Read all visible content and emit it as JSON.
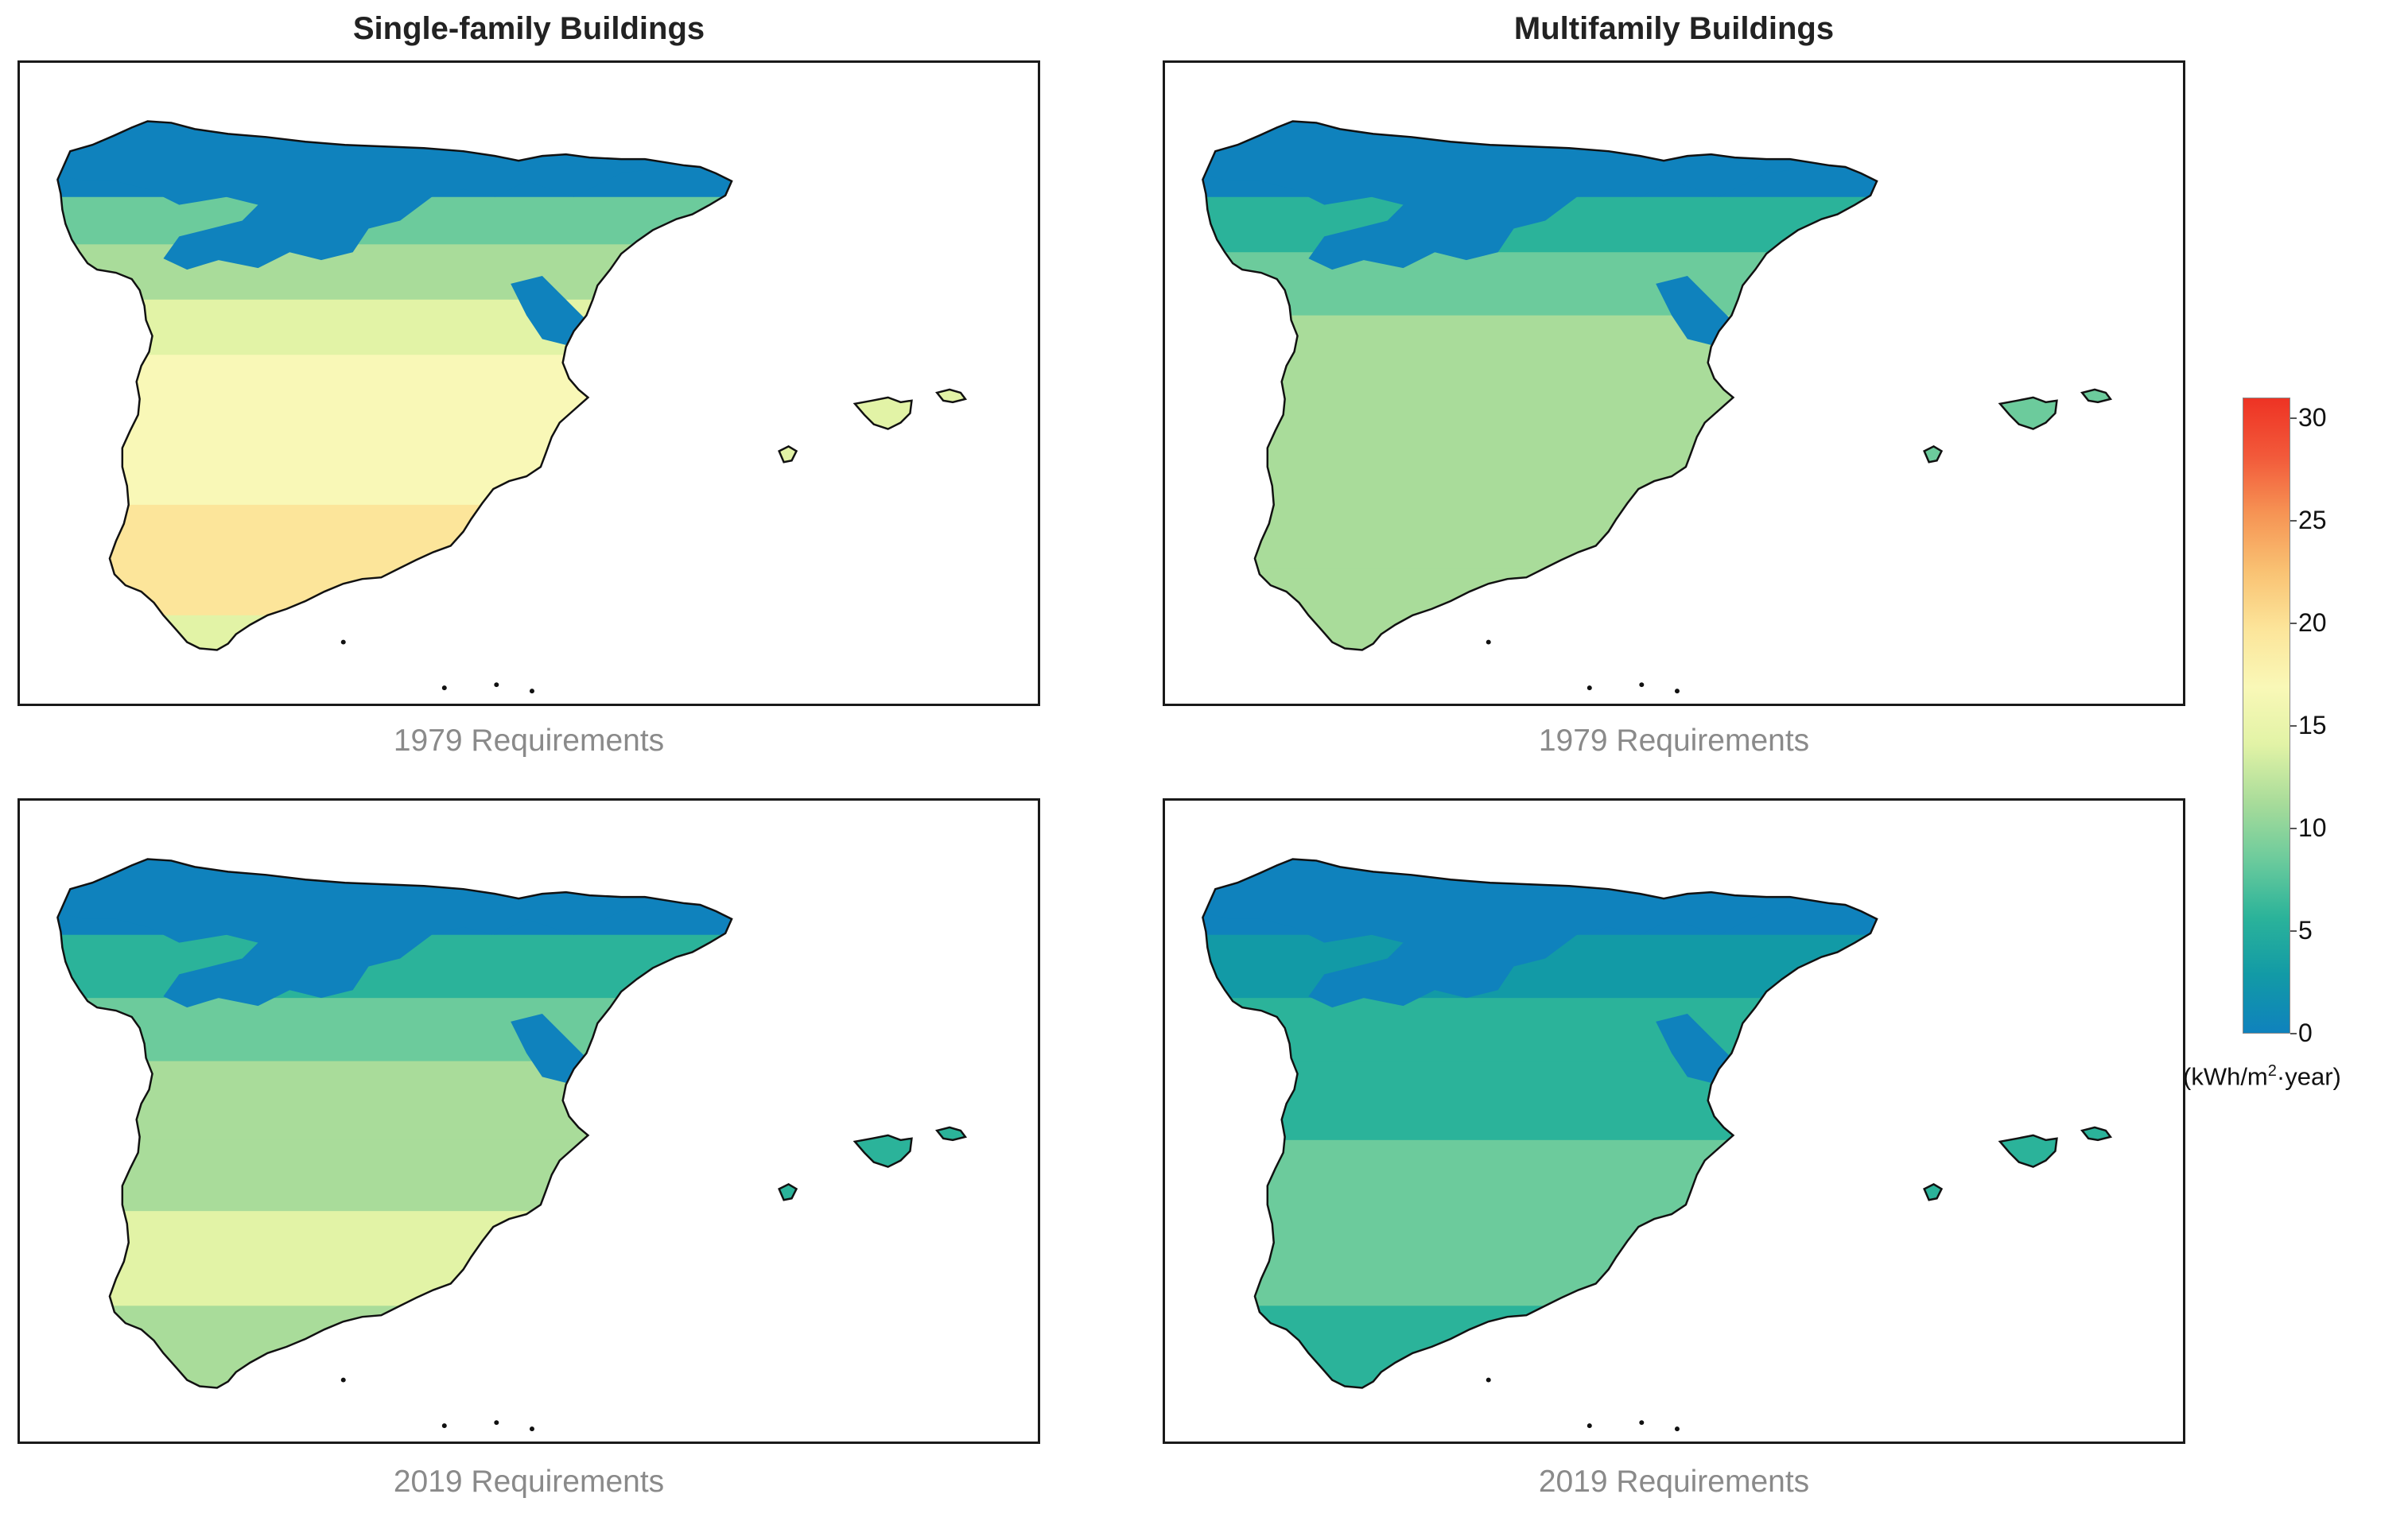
{
  "columns": [
    {
      "title": "Single-family Buildings"
    },
    {
      "title": "Multifamily Buildings"
    }
  ],
  "panels": [
    {
      "id": "sf-1979",
      "caption": "1979 Requirements",
      "scheme": "sf79"
    },
    {
      "id": "mf-1979",
      "caption": "1979 Requirements",
      "scheme": "mf79"
    },
    {
      "id": "sf-2019",
      "caption": "2019 Requirements",
      "scheme": "sf19"
    },
    {
      "id": "mf-2019",
      "caption": "2019 Requirements",
      "scheme": "mf19"
    }
  ],
  "colorbar": {
    "min": 0,
    "max": 31,
    "ticks": [
      "0",
      "5",
      "10",
      "15",
      "20",
      "25",
      "30"
    ],
    "unit_prefix": "(kWh/m",
    "unit_sup": "2",
    "unit_suffix": "·year)",
    "colors": [
      "#0f82bd",
      "#129aa6",
      "#2bb39a",
      "#6ccb9c",
      "#a9dc9a",
      "#e2f3a6",
      "#f9f8b7",
      "#fce59a",
      "#f9c273",
      "#f69454",
      "#f2593a",
      "#ee3324"
    ]
  }
}
